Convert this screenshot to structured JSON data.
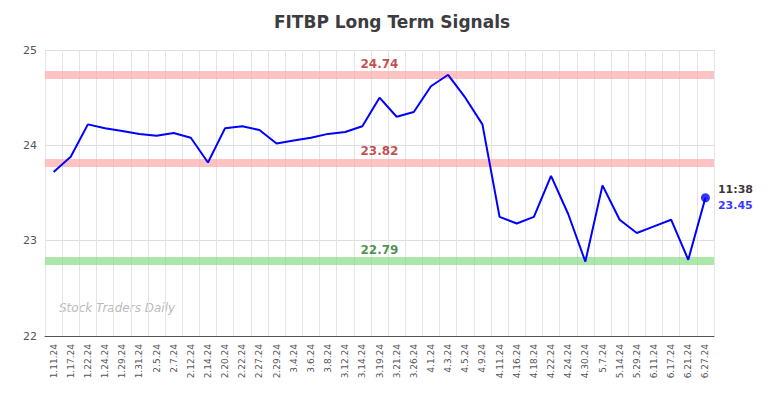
{
  "chart_data": {
    "type": "line",
    "title": "FITBP Long Term Signals",
    "categories": [
      "1.11.24",
      "1.17.24",
      "1.22.24",
      "1.24.24",
      "1.29.24",
      "1.31.24",
      "2.5.24",
      "2.7.24",
      "2.12.24",
      "2.14.24",
      "2.20.24",
      "2.22.24",
      "2.27.24",
      "2.29.24",
      "3.4.24",
      "3.6.24",
      "3.8.24",
      "3.12.24",
      "3.14.24",
      "3.19.24",
      "3.21.24",
      "3.26.24",
      "4.1.24",
      "4.3.24",
      "4.5.24",
      "4.9.24",
      "4.11.24",
      "4.16.24",
      "4.18.24",
      "4.22.24",
      "4.24.24",
      "4.30.24",
      "5.7.24",
      "5.14.24",
      "5.29.24",
      "6.11.24",
      "6.17.24",
      "6.21.24",
      "6.27.24"
    ],
    "values": [
      23.72,
      23.88,
      24.22,
      24.18,
      24.15,
      24.12,
      24.1,
      24.13,
      24.08,
      23.82,
      24.18,
      24.2,
      24.16,
      24.02,
      24.05,
      24.08,
      24.12,
      24.14,
      24.2,
      24.5,
      24.3,
      24.35,
      24.62,
      24.74,
      24.5,
      24.22,
      23.25,
      23.18,
      23.25,
      23.68,
      23.28,
      22.78,
      23.58,
      23.22,
      23.08,
      23.15,
      23.22,
      22.8,
      23.45
    ],
    "color": "blue",
    "ylim": [
      22.0,
      25.0
    ],
    "yticks": [
      22,
      23,
      24,
      25
    ],
    "grid": true,
    "reference_lines": [
      {
        "value": 24.74,
        "color": "#ffaaaa",
        "label_color": "#aa0000"
      },
      {
        "value": 23.82,
        "color": "#ffaaaa",
        "label_color": "#aa0000"
      },
      {
        "value": 22.79,
        "color": "#88dd88",
        "label_color": "#006600"
      }
    ],
    "annotations": [
      {
        "text": "11:38",
        "color": "black"
      },
      {
        "text": "23.45",
        "color": "blue"
      }
    ],
    "watermark": {
      "text": "Stock Traders Daily",
      "color": "#bbbbbb"
    }
  }
}
